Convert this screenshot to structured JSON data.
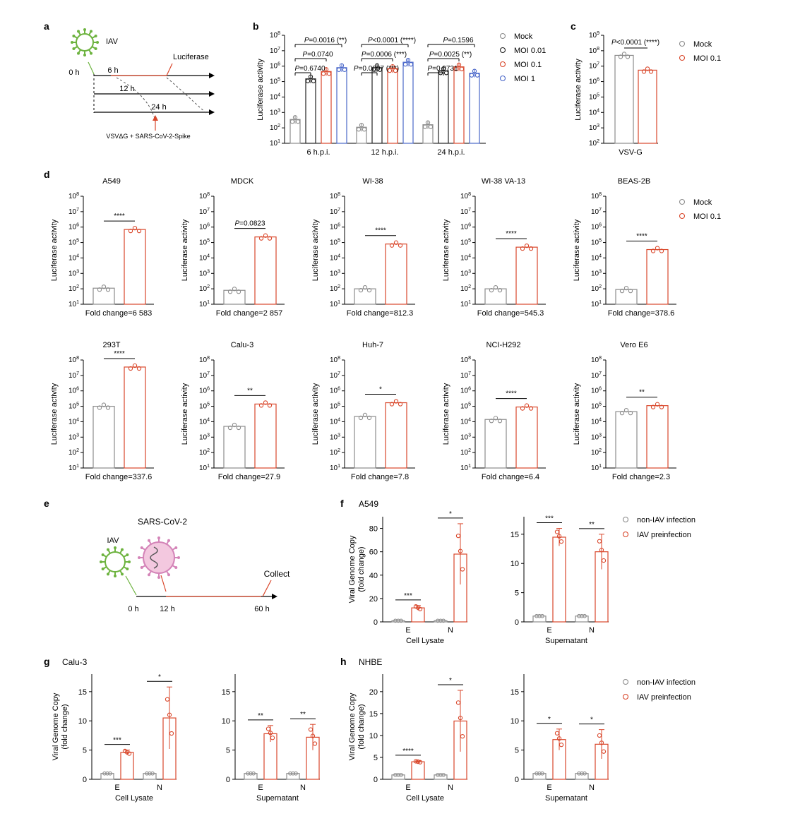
{
  "figure": {
    "panel_letters": [
      "a",
      "b",
      "c",
      "d",
      "e",
      "f",
      "g",
      "h"
    ],
    "colors": {
      "mock": "#8c8c8c",
      "moi001": "#222222",
      "moi01": "#d9472b",
      "moi1": "#4a67c9",
      "virus_green": "#6db33f",
      "virus_pink": "#d484b8",
      "arrow_red": "#d9472b",
      "axis": "#000000"
    }
  },
  "schematic_a": {
    "virus_label": "IAV",
    "end_label": "Luciferase",
    "time_0": "0 h",
    "time_6": "6 h",
    "time_12": "12 h",
    "time_24": "24 h",
    "infect_label": "VSVΔG + SARS-CoV-2-Spike"
  },
  "schematic_e": {
    "virus1_label": "IAV",
    "virus2_label": "SARS-CoV-2",
    "end_label": "Collect",
    "time_0": "0 h",
    "time_12": "12 h",
    "time_60": "60 h"
  },
  "chart_data": [
    {
      "panel": "b",
      "type": "bar",
      "scale": "log",
      "ylabel": "Luciferase activity",
      "ylim": [
        10,
        100000000
      ],
      "yticks": [
        "10",
        "10",
        "10",
        "10",
        "10",
        "10",
        "10",
        "10"
      ],
      "ytick_exps": [
        "1",
        "2",
        "3",
        "4",
        "5",
        "6",
        "7",
        "8"
      ],
      "categories": [
        "6 h.p.i.",
        "12 h.p.i.",
        "24 h.p.i."
      ],
      "series": [
        {
          "name": "Mock",
          "values": [
            350,
            110,
            160
          ]
        },
        {
          "name": "MOI 0.01",
          "values": [
            150000,
            800000,
            500000
          ]
        },
        {
          "name": "MOI 0.1",
          "values": [
            450000,
            700000,
            900000
          ]
        },
        {
          "name": "MOI 1",
          "values": [
            800000,
            1800000,
            350000
          ]
        }
      ],
      "legend": [
        "Mock",
        "MOI 0.01",
        "MOI 0.1",
        "MOI 1"
      ],
      "annotations": [
        {
          "group": 0,
          "text": "P=0.6740"
        },
        {
          "group": 0,
          "text": "P=0.0740"
        },
        {
          "group": 0,
          "text": "P=0.0016 (**)"
        },
        {
          "group": 1,
          "text": "P=0.0007 (***)"
        },
        {
          "group": 1,
          "text": "P=0.0006 (***)"
        },
        {
          "group": 1,
          "text": "P<0.0001 (****)"
        },
        {
          "group": 2,
          "text": "P=0.0731"
        },
        {
          "group": 2,
          "text": "P=0.0025 (**)"
        },
        {
          "group": 2,
          "text": "P=0.1596"
        }
      ]
    },
    {
      "panel": "c",
      "type": "bar",
      "scale": "log",
      "ylabel": "Luciferase activity",
      "ylim": [
        100,
        1000000000
      ],
      "yticks": [
        "10",
        "10",
        "10",
        "10",
        "10",
        "10",
        "10",
        "10"
      ],
      "ytick_exps": [
        "2",
        "3",
        "4",
        "5",
        "6",
        "7",
        "8",
        "9"
      ],
      "xlabel": "VSV-G",
      "series": [
        {
          "name": "Mock",
          "values": [
            50000000
          ]
        },
        {
          "name": "MOI 0.1",
          "values": [
            5500000
          ]
        }
      ],
      "legend": [
        "Mock",
        "MOI 0.1"
      ],
      "annotation": "P<0.0001 (****)"
    },
    {
      "panel": "d",
      "type": "bar",
      "scale": "log",
      "ylabel": "Luciferase activity",
      "ylim": [
        10,
        100000000
      ],
      "yticks": [
        "10",
        "10",
        "10",
        "10",
        "10",
        "10",
        "10",
        "10"
      ],
      "ytick_exps": [
        "1",
        "2",
        "3",
        "4",
        "5",
        "6",
        "7",
        "8"
      ],
      "legend": [
        "Mock",
        "MOI 0.1"
      ],
      "subplots": [
        {
          "title": "A549",
          "mock": 110,
          "moi": 700000,
          "sig": "****",
          "fold": "Fold change=6 583"
        },
        {
          "title": "MDCK",
          "mock": 80,
          "moi": 230000,
          "sig": "P=0.0823",
          "fold": "Fold change=2 857"
        },
        {
          "title": "WI-38",
          "mock": 100,
          "moi": 80000,
          "sig": "****",
          "fold": "Fold change=812.3"
        },
        {
          "title": "WI-38 VA-13",
          "mock": 100,
          "moi": 50000,
          "sig": "****",
          "fold": "Fold change=545.3"
        },
        {
          "title": "BEAS-2B",
          "mock": 90,
          "moi": 35000,
          "sig": "****",
          "fold": "Fold change=378.6"
        },
        {
          "title": "293T",
          "mock": 100000,
          "moi": 35000000,
          "sig": "****",
          "fold": "Fold change=337.6"
        },
        {
          "title": "Calu-3",
          "mock": 5000,
          "moi": 140000,
          "sig": "**",
          "fold": "Fold change=27.9"
        },
        {
          "title": "Huh-7",
          "mock": 22000,
          "moi": 170000,
          "sig": "*",
          "fold": "Fold change=7.8"
        },
        {
          "title": "NCI-H292",
          "mock": 14000,
          "moi": 90000,
          "sig": "****",
          "fold": "Fold change=6.4"
        },
        {
          "title": "Vero E6",
          "mock": 45000,
          "moi": 110000,
          "sig": "**",
          "fold": "Fold change=2.3"
        }
      ]
    },
    {
      "panel": "f",
      "panel_title": "A549",
      "type": "bar",
      "ylabel": "Viral Genome Copy",
      "ylabel2": "(fold change)",
      "legend": [
        "non-IAV infection",
        "IAV preinfection"
      ],
      "subplots": [
        {
          "xlabel": "Cell Lysate",
          "categories": [
            "E",
            "N"
          ],
          "ylim": [
            0,
            90
          ],
          "yticks": [
            0,
            20,
            40,
            60,
            80
          ],
          "control": [
            1,
            1
          ],
          "iav": [
            12,
            58
          ],
          "err": [
            2,
            26
          ],
          "sig": [
            "***",
            "*"
          ]
        },
        {
          "xlabel": "Supernatant",
          "categories": [
            "E",
            "N"
          ],
          "ylim": [
            0,
            18
          ],
          "yticks": [
            0,
            5,
            10,
            15
          ],
          "control": [
            1,
            1
          ],
          "iav": [
            14.5,
            12
          ],
          "err": [
            1.5,
            3
          ],
          "sig": [
            "***",
            "**"
          ]
        }
      ]
    },
    {
      "panel": "g",
      "panel_title": "Calu-3",
      "type": "bar",
      "ylabel": "Viral Genome Copy",
      "ylabel2": "(fold change)",
      "subplots": [
        {
          "xlabel": "Cell Lysate",
          "categories": [
            "E",
            "N"
          ],
          "ylim": [
            0,
            18
          ],
          "yticks": [
            0,
            5,
            10,
            15
          ],
          "control": [
            1,
            1
          ],
          "iav": [
            4.6,
            10.5
          ],
          "err": [
            0.4,
            5.3
          ],
          "sig": [
            "***",
            "*"
          ]
        },
        {
          "xlabel": "Supernatant",
          "categories": [
            "E",
            "N"
          ],
          "ylim": [
            0,
            18
          ],
          "yticks": [
            0,
            5,
            10,
            15
          ],
          "control": [
            1,
            1
          ],
          "iav": [
            7.8,
            7.2
          ],
          "err": [
            1.4,
            2.2
          ],
          "sig": [
            "**",
            "**"
          ]
        }
      ]
    },
    {
      "panel": "h",
      "panel_title": "NHBE",
      "type": "bar",
      "ylabel": "Viral Genome Copy",
      "ylabel2": "(fold change)",
      "legend": [
        "non-IAV infection",
        "IAV preinfection"
      ],
      "subplots": [
        {
          "xlabel": "Cell Lysate",
          "categories": [
            "E",
            "N"
          ],
          "ylim": [
            0,
            24
          ],
          "yticks": [
            0,
            5,
            10,
            15,
            20
          ],
          "control": [
            1,
            1
          ],
          "iav": [
            4,
            13.3
          ],
          "err": [
            0.2,
            7
          ],
          "sig": [
            "****",
            "*"
          ]
        },
        {
          "xlabel": "Supernatant",
          "categories": [
            "E",
            "N"
          ],
          "ylim": [
            0,
            18
          ],
          "yticks": [
            0,
            5,
            10,
            15
          ],
          "control": [
            1,
            1
          ],
          "iav": [
            6.8,
            6
          ],
          "err": [
            1.8,
            2.5
          ],
          "sig": [
            "*",
            "*"
          ]
        }
      ]
    }
  ]
}
